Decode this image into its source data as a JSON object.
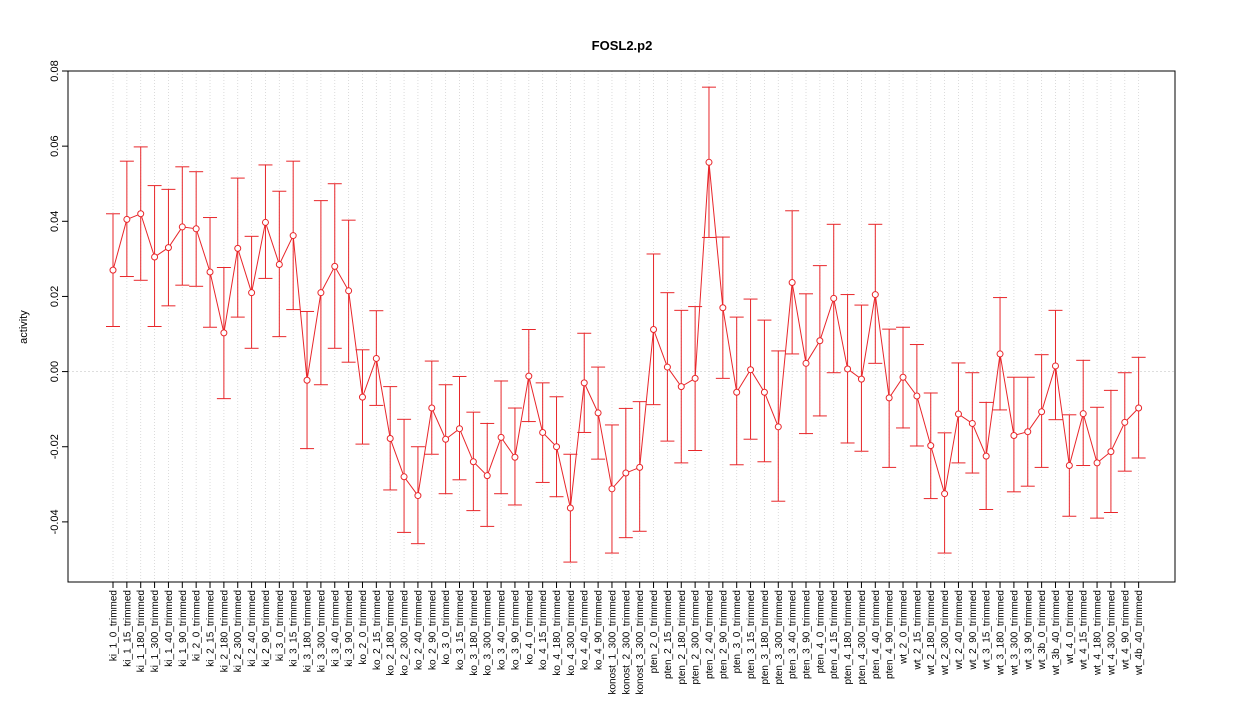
{
  "chart_data": {
    "type": "line",
    "title": "FOSL2.p2",
    "xlabel": "",
    "ylabel": "activity",
    "ylim": [
      -0.056,
      0.08
    ],
    "yticks": [
      -0.04,
      -0.02,
      0.0,
      0.02,
      0.04,
      0.06,
      0.08
    ],
    "ytick_labels": [
      "-0.04",
      "-0.02",
      "0.00",
      "0.02",
      "0.04",
      "0.06",
      "0.08"
    ],
    "grid": true,
    "reference_line": 0.0,
    "colors": {
      "series": "#e8262a",
      "grid": "#d3d3d3",
      "axis": "#000000"
    },
    "categories": [
      "ki_1_0_trimmed",
      "ki_1_15_trimmed",
      "ki_1_180_trimmed",
      "ki_1_300_trimmed",
      "ki_1_40_trimmed",
      "ki_1_90_trimmed",
      "ki_2_0_trimmed",
      "ki_2_15_trimmed",
      "ki_2_180_trimmed",
      "ki_2_300_trimmed",
      "ki_2_40_trimmed",
      "ki_2_90_trimmed",
      "ki_3_0_trimmed",
      "ki_3_15_trimmed",
      "ki_3_180_trimmed",
      "ki_3_300_trimmed",
      "ki_3_40_trimmed",
      "ki_3_90_trimmed",
      "ko_2_0_trimmed",
      "ko_2_15_trimmed",
      "ko_2_180_trimmed",
      "ko_2_300_trimmed",
      "ko_2_40_trimmed",
      "ko_2_90_trimmed",
      "ko_3_0_trimmed",
      "ko_3_15_trimmed",
      "ko_3_180_trimmed",
      "ko_3_300_trimmed",
      "ko_3_40_trimmed",
      "ko_3_90_trimmed",
      "ko_4_0_trimmed",
      "ko_4_15_trimmed",
      "ko_4_180_trimmed",
      "ko_4_300_trimmed",
      "ko_4_40_trimmed",
      "ko_4_90_trimmed",
      "konost_1_300_trimmed",
      "konost_2_300_trimmed",
      "konost_3_300_trimmed",
      "pten_2_0_trimmed",
      "pten_2_15_trimmed",
      "pten_2_180_trimmed",
      "pten_2_300_trimmed",
      "pten_2_40_trimmed",
      "pten_2_90_trimmed",
      "pten_3_0_trimmed",
      "pten_3_15_trimmed",
      "pten_3_180_trimmed",
      "pten_3_300_trimmed",
      "pten_3_40_trimmed",
      "pten_3_90_trimmed",
      "pten_4_0_trimmed",
      "pten_4_15_trimmed",
      "pten_4_180_trimmed",
      "pten_4_300_trimmed",
      "pten_4_40_trimmed",
      "pten_4_90_trimmed",
      "wt_2_0_trimmed",
      "wt_2_15_trimmed",
      "wt_2_180_trimmed",
      "wt_2_300_trimmed",
      "wt_2_40_trimmed",
      "wt_2_90_trimmed",
      "wt_3_15_trimmed",
      "wt_3_180_trimmed",
      "wt_3_300_trimmed",
      "wt_3_90_trimmed",
      "wt_3b_0_trimmed",
      "wt_3b_40_trimmed",
      "wt_4_0_trimmed",
      "wt_4_15_trimmed",
      "wt_4_180_trimmed",
      "wt_4_300_trimmed",
      "wt_4_90_trimmed",
      "wt_4b_40_trimmed"
    ],
    "series": [
      {
        "values": [
          0.027,
          0.0405,
          0.042,
          0.0305,
          0.033,
          0.0385,
          0.038,
          0.0265,
          0.0103,
          0.0328,
          0.021,
          0.0397,
          0.0285,
          0.0362,
          -0.0023,
          0.021,
          0.028,
          0.0215,
          -0.0068,
          0.0035,
          -0.0178,
          -0.028,
          -0.033,
          -0.0097,
          -0.018,
          -0.0152,
          -0.024,
          -0.0277,
          -0.0175,
          -0.0228,
          -0.0012,
          -0.0162,
          -0.02,
          -0.0363,
          -0.003,
          -0.011,
          -0.0312,
          -0.027,
          -0.0255,
          0.0112,
          0.0012,
          -0.004,
          -0.0018,
          0.0557,
          0.017,
          -0.0055,
          0.0005,
          -0.0055,
          -0.0147,
          0.0237,
          0.0022,
          0.0082,
          0.0195,
          0.0007,
          -0.002,
          0.0205,
          -0.007,
          -0.0015,
          -0.0065,
          -0.0197,
          -0.0325,
          -0.0113,
          -0.0138,
          -0.0225,
          0.0047,
          -0.017,
          -0.016,
          -0.0107,
          0.0015,
          -0.025,
          -0.0112,
          -0.0243,
          -0.0213,
          -0.0135,
          -0.0097
        ],
        "upper": [
          0.042,
          0.056,
          0.0598,
          0.0495,
          0.0485,
          0.0545,
          0.0532,
          0.041,
          0.0277,
          0.0515,
          0.036,
          0.055,
          0.048,
          0.056,
          0.016,
          0.0455,
          0.05,
          0.0403,
          0.0058,
          0.0162,
          -0.004,
          -0.0127,
          -0.02,
          0.0028,
          -0.0035,
          -0.0013,
          -0.0108,
          -0.0138,
          -0.0025,
          -0.0097,
          0.0112,
          -0.003,
          -0.0067,
          -0.022,
          0.0102,
          0.0012,
          -0.0142,
          -0.0098,
          -0.008,
          0.0313,
          0.021,
          0.0163,
          0.0173,
          0.0757,
          0.0358,
          0.0145,
          0.0193,
          0.0137,
          0.0055,
          0.0428,
          0.0207,
          0.0282,
          0.0392,
          0.0205,
          0.0177,
          0.0392,
          0.0113,
          0.0118,
          0.0072,
          -0.0057,
          -0.0163,
          0.0023,
          -0.0003,
          -0.0082,
          0.0197,
          -0.0015,
          -0.0015,
          0.0045,
          0.0163,
          -0.0115,
          0.003,
          -0.0095,
          -0.005,
          -0.0003,
          0.0038
        ],
        "lower": [
          0.012,
          0.0253,
          0.0243,
          0.012,
          0.0175,
          0.023,
          0.0227,
          0.0118,
          -0.0072,
          0.0145,
          0.0062,
          0.0248,
          0.0093,
          0.0165,
          -0.0205,
          -0.0035,
          0.0062,
          0.0025,
          -0.0193,
          -0.009,
          -0.0315,
          -0.0428,
          -0.0458,
          -0.022,
          -0.0325,
          -0.0288,
          -0.037,
          -0.0412,
          -0.0325,
          -0.0355,
          -0.0133,
          -0.0295,
          -0.0333,
          -0.0507,
          -0.0162,
          -0.0233,
          -0.0483,
          -0.0442,
          -0.0425,
          -0.0088,
          -0.0185,
          -0.0243,
          -0.021,
          0.0357,
          -0.0018,
          -0.0248,
          -0.018,
          -0.024,
          -0.0345,
          0.0047,
          -0.0165,
          -0.0118,
          -0.0003,
          -0.019,
          -0.0212,
          0.0022,
          -0.0255,
          -0.015,
          -0.0198,
          -0.0338,
          -0.0483,
          -0.0243,
          -0.027,
          -0.0367,
          -0.0102,
          -0.032,
          -0.0305,
          -0.0255,
          -0.0128,
          -0.0385,
          -0.025,
          -0.039,
          -0.0375,
          -0.0265,
          -0.023
        ]
      }
    ]
  }
}
